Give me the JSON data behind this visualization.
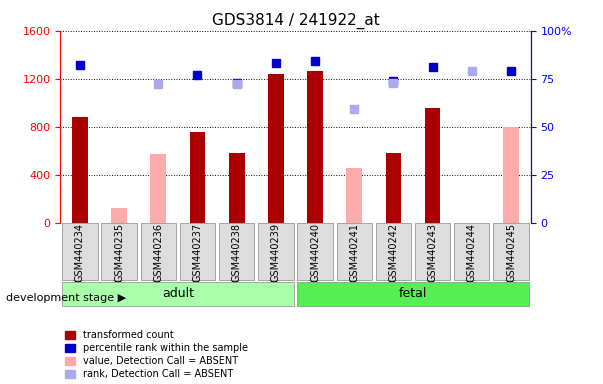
{
  "title": "GDS3814 / 241922_at",
  "categories": [
    "GSM440234",
    "GSM440235",
    "GSM440236",
    "GSM440237",
    "GSM440238",
    "GSM440239",
    "GSM440240",
    "GSM440241",
    "GSM440242",
    "GSM440243",
    "GSM440244",
    "GSM440245"
  ],
  "bar_values": [
    880,
    null,
    null,
    760,
    580,
    1240,
    1265,
    null,
    580,
    960,
    null,
    null
  ],
  "bar_absent_values": [
    null,
    120,
    570,
    null,
    null,
    null,
    null,
    460,
    null,
    null,
    null,
    800
  ],
  "dot_values": [
    82,
    null,
    null,
    77,
    73,
    83,
    84,
    null,
    74,
    81,
    null,
    79
  ],
  "dot_absent_values": [
    null,
    null,
    72,
    null,
    72,
    null,
    null,
    59,
    73,
    null,
    79,
    null
  ],
  "ylim_left": [
    0,
    1600
  ],
  "ylim_right": [
    0,
    100
  ],
  "yticks_left": [
    0,
    400,
    800,
    1200,
    1600
  ],
  "yticks_right": [
    0,
    25,
    50,
    75,
    100
  ],
  "ytick_right_labels": [
    "0",
    "25",
    "50",
    "75",
    "100%"
  ],
  "bar_color": "#aa0000",
  "bar_absent_color": "#ffaaaa",
  "dot_color": "#0000cc",
  "dot_absent_color": "#aaaaee",
  "group_adult_label": "adult",
  "group_adult_color": "#aaffaa",
  "group_fetal_label": "fetal",
  "group_fetal_color": "#55ee55",
  "group_label": "development stage",
  "legend": [
    {
      "label": "transformed count",
      "color": "#aa0000"
    },
    {
      "label": "percentile rank within the sample",
      "color": "#0000cc"
    },
    {
      "label": "value, Detection Call = ABSENT",
      "color": "#ffaaaa"
    },
    {
      "label": "rank, Detection Call = ABSENT",
      "color": "#aaaaee"
    }
  ]
}
